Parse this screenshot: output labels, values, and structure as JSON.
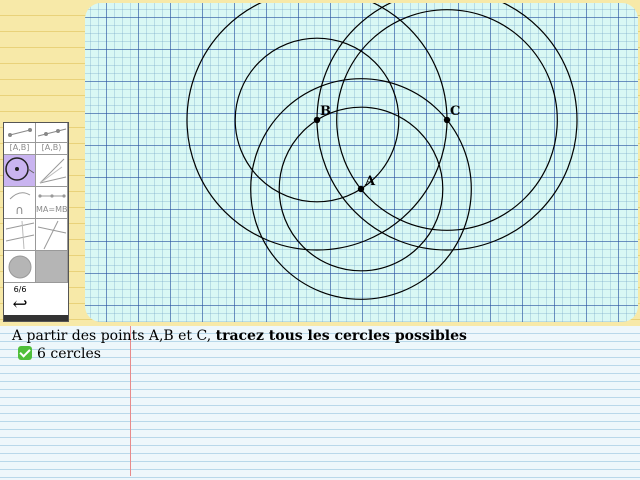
{
  "geometry": {
    "points": [
      {
        "name": "A",
        "label": "A"
      },
      {
        "name": "B",
        "label": "B"
      },
      {
        "name": "C",
        "label": "C"
      }
    ],
    "circles": [
      {
        "center": "A",
        "through": "B"
      },
      {
        "center": "A",
        "through": "C"
      },
      {
        "center": "B",
        "through": "A"
      },
      {
        "center": "B",
        "through": "C"
      },
      {
        "center": "C",
        "through": "A"
      },
      {
        "center": "C",
        "through": "B"
      }
    ]
  },
  "toolbar": {
    "tools": [
      {
        "name": "segment-tool",
        "text": ""
      },
      {
        "name": "line-tool",
        "text": ""
      },
      {
        "name": "segment-label-tool",
        "text": "[A,B]"
      },
      {
        "name": "segment-label-tool-2",
        "text": "[A,B)"
      },
      {
        "name": "circle-tool",
        "text": ""
      },
      {
        "name": "angle-tool",
        "text": ""
      },
      {
        "name": "arc-tool",
        "text": "∩"
      },
      {
        "name": "equal-length-tool",
        "text": "MA=MB"
      },
      {
        "name": "perpendicular-tool",
        "text": ""
      },
      {
        "name": "parallel-tool",
        "text": ""
      },
      {
        "name": "fill-tool",
        "text": ""
      },
      {
        "name": "gray-tool",
        "text": ""
      }
    ],
    "page_counter": "6/6",
    "undo_glyph": "↩"
  },
  "notebook": {
    "instruction_plain": "A partir des points A,B et C, ",
    "instruction_bold": "tracez tous les cercles possibles",
    "result": "6 cercles"
  },
  "colors": {
    "canvas_bg": "#d9f8f4",
    "active_tool": "#c9b4f0",
    "check": "#4fbf3a"
  }
}
